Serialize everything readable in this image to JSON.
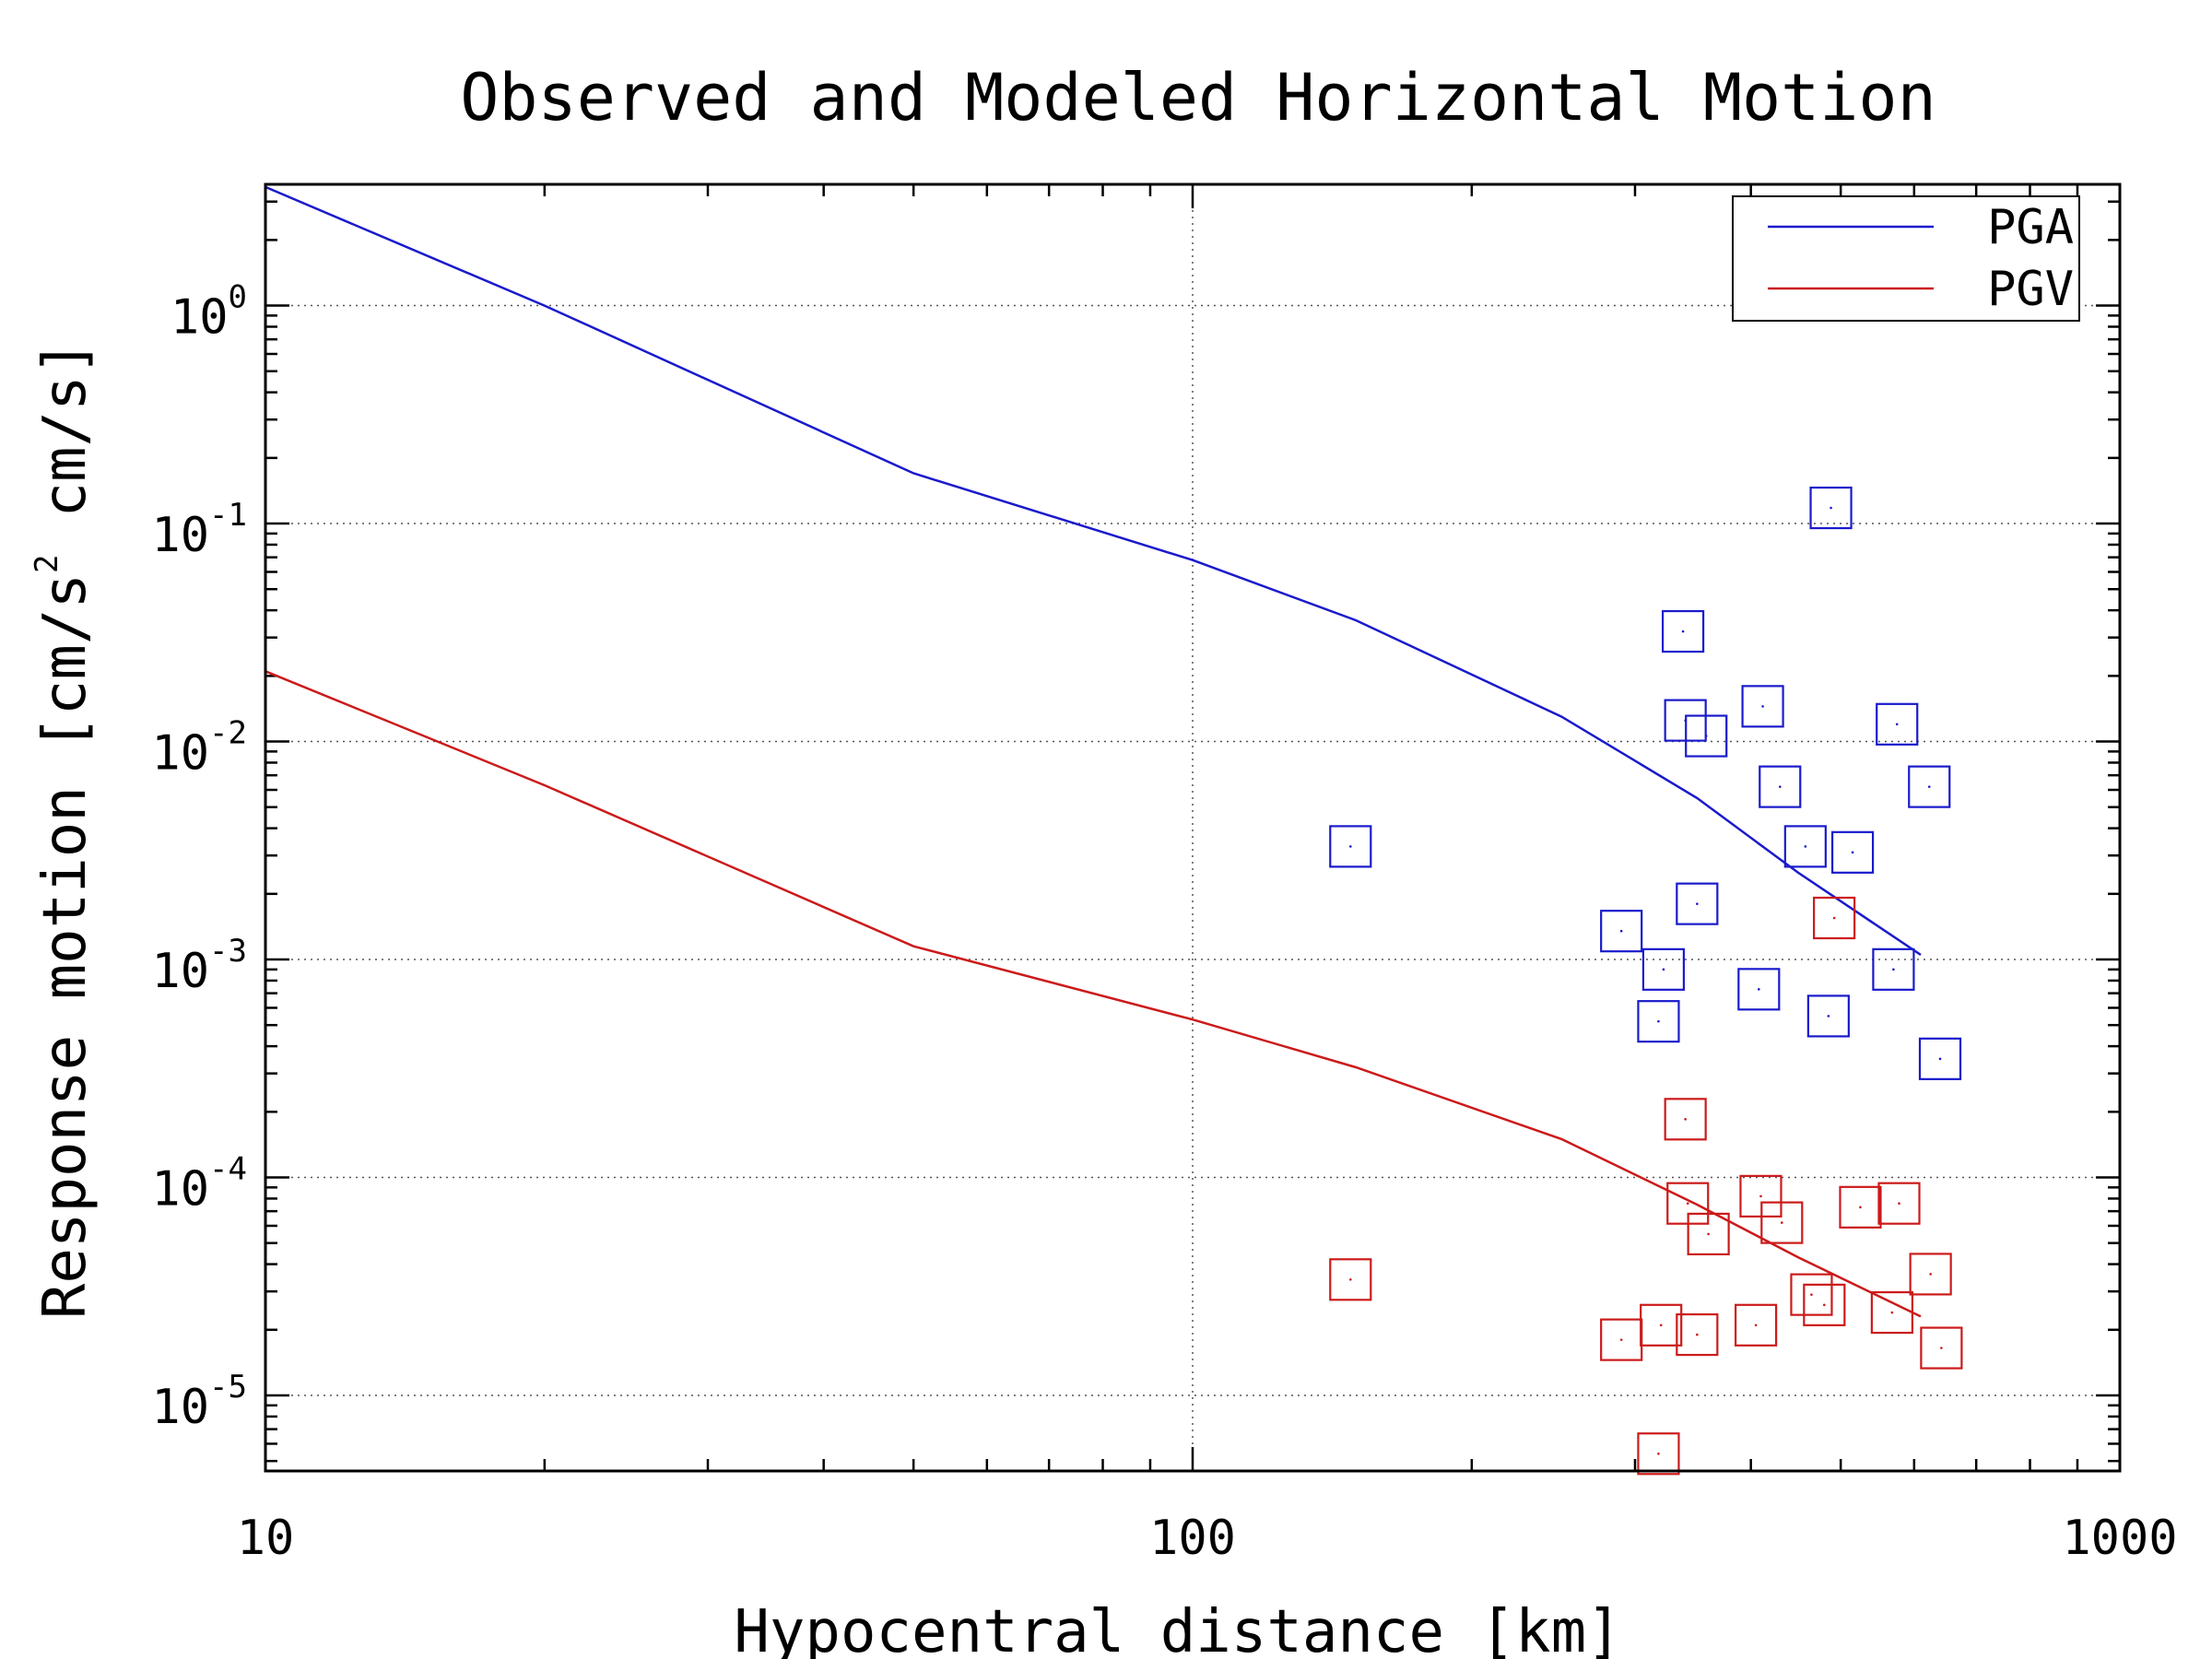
{
  "chart_data": {
    "type": "scatter",
    "title": "Observed and Modeled Horizontal Motion",
    "xlabel": "Hypocentral distance [km]",
    "ylabel": "Response motion [cm/s² cm/s]",
    "ylabel_parts": {
      "pre": "Response motion [cm/s",
      "sup": "2",
      "post": "cm/s]"
    },
    "xscale": "log",
    "yscale": "log",
    "xlim": [
      10,
      1000
    ],
    "ylim": [
      4.5e-06,
      3.6
    ],
    "x_ticks": [
      {
        "value": 10,
        "label": "10"
      },
      {
        "value": 100,
        "label": "100"
      },
      {
        "value": 1000,
        "label": "1000"
      }
    ],
    "y_ticks": [
      {
        "value": 1,
        "base": "10",
        "exp": "0"
      },
      {
        "value": 0.1,
        "base": "10",
        "exp": "-1"
      },
      {
        "value": 0.01,
        "base": "10",
        "exp": "-2"
      },
      {
        "value": 0.001,
        "base": "10",
        "exp": "-3"
      },
      {
        "value": 0.0001,
        "base": "10",
        "exp": "-4"
      },
      {
        "value": 1e-05,
        "base": "10",
        "exp": "-5"
      }
    ],
    "grid": true,
    "legend_position": "top-right",
    "series": [
      {
        "name": "PGA",
        "kind": "line",
        "color": "#1a1acc",
        "x": [
          10,
          20,
          50,
          100,
          150,
          250,
          350,
          450,
          610
        ],
        "y": [
          3.5,
          1.0,
          0.17,
          0.068,
          0.036,
          0.013,
          0.0055,
          0.0025,
          0.00105
        ]
      },
      {
        "name": "PGV",
        "kind": "line",
        "color": "#cc1a1a",
        "x": [
          10,
          20,
          50,
          100,
          150,
          250,
          350,
          450,
          610
        ],
        "y": [
          0.021,
          0.0063,
          0.00115,
          0.00053,
          0.00032,
          0.00015,
          7.5e-05,
          4.3e-05,
          2.3e-05
        ]
      },
      {
        "kind": "observed",
        "marker": "square",
        "color": "#1a1acc",
        "x": [
          148,
          290,
          318,
          322,
          338,
          340,
          350,
          358,
          408,
          412,
          430,
          458,
          485,
          488,
          515,
          570,
          575,
          623,
          640
        ],
        "y": [
          0.0033,
          0.00135,
          0.00052,
          0.0009,
          0.032,
          0.0125,
          0.0018,
          0.0106,
          0.00073,
          0.0145,
          0.0062,
          0.0033,
          0.00055,
          0.118,
          0.0031,
          0.0009,
          0.012,
          0.0062,
          0.00035
        ]
      },
      {
        "kind": "observed",
        "marker": "square",
        "color": "#cc1a1a",
        "x": [
          148,
          290,
          318,
          320,
          340,
          342,
          350,
          360,
          405,
          410,
          432,
          465,
          480,
          492,
          525,
          568,
          578,
          625,
          642
        ],
        "y": [
          3.4e-05,
          1.8e-05,
          5.4e-06,
          2.1e-05,
          0.000185,
          7.6e-05,
          1.9e-05,
          5.5e-05,
          2.1e-05,
          8.2e-05,
          6.2e-05,
          2.9e-05,
          2.6e-05,
          0.00155,
          7.3e-05,
          2.4e-05,
          7.6e-05,
          3.6e-05,
          1.65e-05
        ]
      }
    ]
  }
}
